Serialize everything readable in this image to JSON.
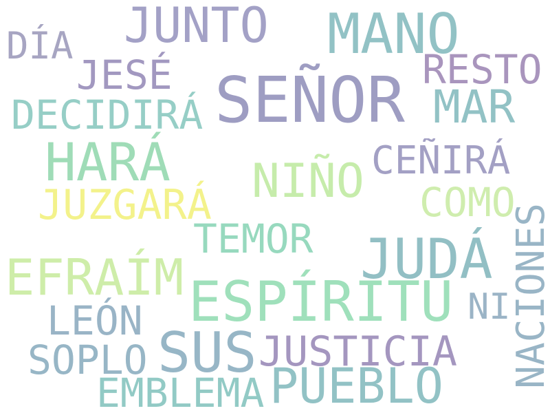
{
  "words": [
    {
      "text": "SEÑOR",
      "color": "#8e8db8"
    },
    {
      "text": "MANO",
      "color": "#7fb8bb"
    },
    {
      "text": "JUNTO",
      "color": "#9391bd"
    },
    {
      "text": "DÍA",
      "color": "#9896b8"
    },
    {
      "text": "JESÉ",
      "color": "#9287b6"
    },
    {
      "text": "RESTO",
      "color": "#9b83b2"
    },
    {
      "text": "MAR",
      "color": "#7fb8bb"
    },
    {
      "text": "DECIDIRÁ",
      "color": "#84c6bd"
    },
    {
      "text": "HARÁ",
      "color": "#8fd6ab"
    },
    {
      "text": "CEÑIRÁ",
      "color": "#9390ba"
    },
    {
      "text": "NIÑO",
      "color": "#bde99d"
    },
    {
      "text": "COMO",
      "color": "#c7eaa0"
    },
    {
      "text": "JUZGARÁ",
      "color": "#f2f077"
    },
    {
      "text": "TEMOR",
      "color": "#86d3b3"
    },
    {
      "text": "JUDÁ",
      "color": "#80b4ba"
    },
    {
      "text": "EFRAÍM",
      "color": "#c6ea9b"
    },
    {
      "text": "ESPÍRITU",
      "color": "#8fdbb0"
    },
    {
      "text": "NI",
      "color": "#8aa7bd"
    },
    {
      "text": "LEÓN",
      "color": "#88a8bd"
    },
    {
      "text": "SUS",
      "color": "#85aabd"
    },
    {
      "text": "JUSTICIA",
      "color": "#9584b5"
    },
    {
      "text": "SOPLO",
      "color": "#86aabd"
    },
    {
      "text": "PUEBLO",
      "color": "#7fb8bb"
    },
    {
      "text": "EMBLEMA",
      "color": "#80c1bc"
    },
    {
      "text": "NACIONES",
      "color": "#88a9bd"
    }
  ]
}
